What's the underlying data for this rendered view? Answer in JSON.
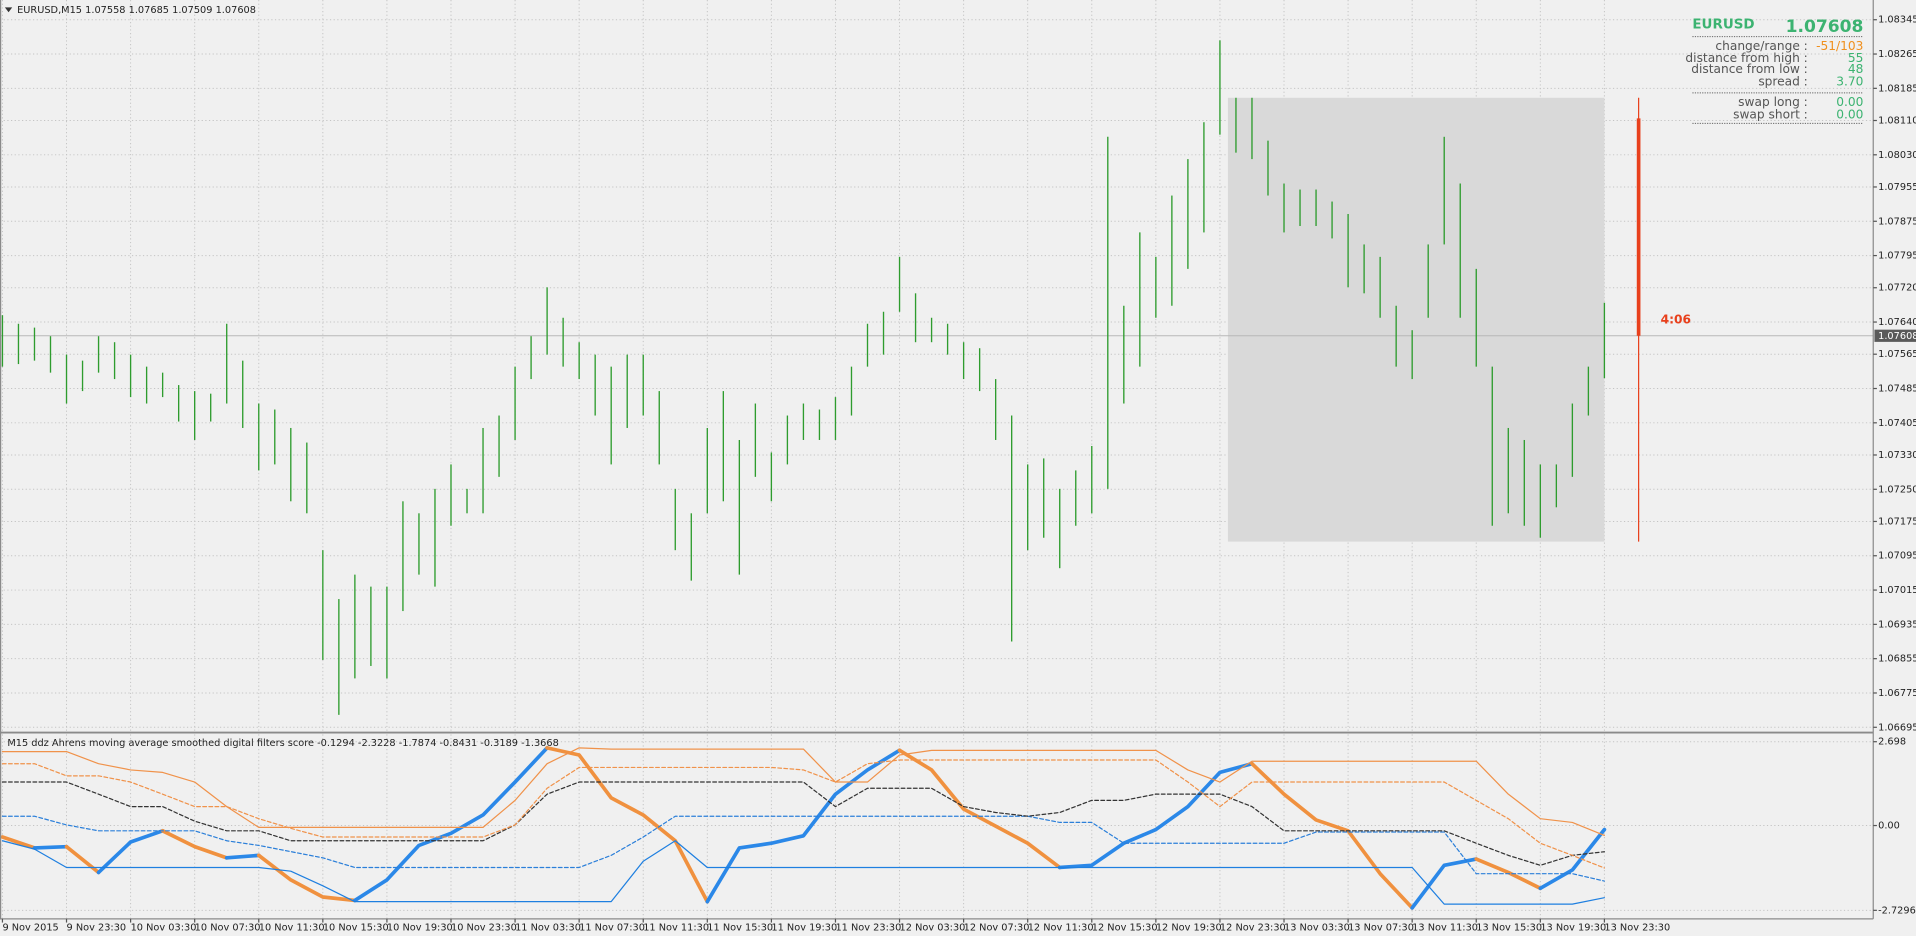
{
  "header": {
    "title": "EURUSD,M15  1.07558 1.07685 1.07509 1.07608"
  },
  "info_panel": {
    "symbol": "EURUSD",
    "price": "1.07608",
    "separator": ":",
    "label_color": "#555555",
    "symbol_color": "#3cb371",
    "rows": [
      {
        "label": "change/range",
        "value": "-51/103",
        "color": "#f0901e"
      },
      {
        "label": "distance from high",
        "value": "55",
        "color": "#3cb371"
      },
      {
        "label": "distance from low",
        "value": "48",
        "color": "#3cb371"
      },
      {
        "label": "spread",
        "value": "3.70",
        "color": "#3cb371"
      },
      {
        "label": "swap long",
        "value": "0.00",
        "color": "#3cb371"
      },
      {
        "label": "swap short",
        "value": "0.00",
        "color": "#3cb371"
      }
    ]
  },
  "time_axis": {
    "labels": [
      "9 Nov 2015",
      "9 Nov 23:30",
      "10 Nov 03:30",
      "10 Nov 07:30",
      "10 Nov 11:30",
      "10 Nov 15:30",
      "10 Nov 19:30",
      "10 Nov 23:30",
      "11 Nov 03:30",
      "11 Nov 07:30",
      "11 Nov 11:30",
      "11 Nov 15:30",
      "11 Nov 19:30",
      "11 Nov 23:30",
      "12 Nov 03:30",
      "12 Nov 07:30",
      "12 Nov 11:30",
      "12 Nov 15:30",
      "12 Nov 19:30",
      "12 Nov 23:30",
      "13 Nov 03:30",
      "13 Nov 07:30",
      "13 Nov 11:30",
      "13 Nov 15:30",
      "13 Nov 19:30",
      "13 Nov 23:30"
    ]
  },
  "chart_data": [
    {
      "type": "hl_bars",
      "color": "#2e9c2e",
      "grid": true,
      "ylim": [
        1.06687,
        1.08391
      ],
      "yticks": [
        1.08345,
        1.08265,
        1.08185,
        {
          "value": 1.0811,
          "label": "1.08110"
        },
        {
          "value": 1.0803,
          "label": "1.08030"
        },
        1.07955,
        1.07875,
        1.07795,
        {
          "value": 1.0772,
          "label": "1.07720"
        },
        {
          "value": 1.0764,
          "label": "1.07640"
        },
        1.07565,
        1.07485,
        1.07405,
        {
          "value": 1.0733,
          "label": "1.07330"
        },
        {
          "value": 1.0725,
          "label": "1.07250"
        },
        1.07175,
        1.07095,
        1.07015,
        1.06935,
        1.06855,
        1.06775,
        1.06695
      ],
      "high": [
        1.07656,
        1.07636,
        1.07627,
        1.07607,
        1.07564,
        1.0755,
        1.07607,
        1.07593,
        1.07564,
        1.07536,
        1.07522,
        1.07493,
        1.07479,
        1.07473,
        1.07636,
        1.0755,
        1.0745,
        1.07436,
        1.07393,
        1.07359,
        1.07108,
        1.06994,
        1.07051,
        1.07023,
        1.07023,
        1.07222,
        1.07194,
        1.07251,
        1.07308,
        1.07251,
        1.07393,
        1.07422,
        1.07536,
        1.07607,
        1.07721,
        1.0765,
        1.07593,
        1.07564,
        1.07536,
        1.07564,
        1.07564,
        1.07479,
        1.07251,
        1.07194,
        1.07393,
        1.07479,
        1.07365,
        1.0745,
        1.07336,
        1.07422,
        1.0745,
        1.07436,
        1.07465,
        1.07536,
        1.07636,
        1.07664,
        1.07792,
        1.07707,
        1.0765,
        1.07636,
        1.07593,
        1.07579,
        1.07507,
        1.07422,
        1.07308,
        1.07322,
        1.07251,
        1.07294,
        1.07351,
        1.08072,
        1.07678,
        1.07849,
        1.07792,
        1.07935,
        1.0802,
        1.08106,
        1.08297,
        1.08163,
        1.08163,
        1.08063,
        1.07963,
        1.07949,
        1.07949,
        1.07921,
        1.07892,
        1.07821,
        1.07792,
        1.07678,
        1.07621,
        1.07821,
        1.08072,
        1.07963,
        1.07764,
        1.07536,
        1.07393,
        1.07365,
        1.07308,
        1.07308,
        1.0745,
        1.07536,
        1.07685
      ],
      "low": [
        1.07536,
        1.07542,
        1.0755,
        1.07522,
        1.0745,
        1.07479,
        1.07522,
        1.07507,
        1.07465,
        1.0745,
        1.07465,
        1.07408,
        1.07365,
        1.07408,
        1.0745,
        1.07393,
        1.07294,
        1.07308,
        1.07222,
        1.07194,
        1.06852,
        1.06724,
        1.06809,
        1.06838,
        1.06809,
        1.06966,
        1.07051,
        1.07023,
        1.07165,
        1.07194,
        1.07194,
        1.07279,
        1.07365,
        1.07507,
        1.07564,
        1.07536,
        1.07507,
        1.07422,
        1.07308,
        1.07393,
        1.07422,
        1.07308,
        1.07108,
        1.07037,
        1.07194,
        1.07222,
        1.07051,
        1.07279,
        1.07222,
        1.07308,
        1.07365,
        1.07365,
        1.07365,
        1.07422,
        1.07536,
        1.07564,
        1.07664,
        1.07593,
        1.07593,
        1.07564,
        1.07507,
        1.07479,
        1.07365,
        1.06895,
        1.07108,
        1.07137,
        1.07066,
        1.07165,
        1.07194,
        1.07251,
        1.0745,
        1.07536,
        1.0765,
        1.07678,
        1.07764,
        1.07849,
        1.08077,
        1.08035,
        1.0802,
        1.07935,
        1.07849,
        1.07864,
        1.07864,
        1.07835,
        1.07721,
        1.07707,
        1.0765,
        1.07536,
        1.07507,
        1.0765,
        1.07821,
        1.0765,
        1.07536,
        1.07165,
        1.07194,
        1.07165,
        1.07137,
        1.07208,
        1.07279,
        1.07422,
        1.07509
      ],
      "last_price": 1.07608,
      "range_box": {
        "high": 1.08163,
        "low": 1.07128,
        "color": "#d9d9d9"
      },
      "timer": {
        "label": "4:06",
        "high": 1.08163,
        "low": 1.07128,
        "from": 1.08115,
        "to": 1.07608,
        "color": "#e8401c"
      }
    },
    {
      "type": "line",
      "title": "M15 ddz Ahrens moving average smoothed digital filters score -0.1294 -2.3228 -1.7874 -0.8431 -0.3189 -1.3668",
      "grid": true,
      "ylim": [
        -3.005,
        2.934
      ],
      "yticks": [
        2.698,
        {
          "value": 0,
          "label": "0.00"
        },
        -2.7296
      ],
      "series": [
        {
          "color": "#2b88e8",
          "falling_color": "#f0913f",
          "width": 3,
          "values": [
            -0.37,
            -0.72,
            -0.68,
            -1.51,
            -0.53,
            -0.17,
            -0.68,
            -1.04,
            -0.96,
            -1.75,
            -2.3,
            -2.41,
            -1.75,
            -0.64,
            -0.25,
            0.34,
            1.4,
            2.5,
            2.27,
            0.89,
            0.34,
            -0.49,
            -2.45,
            -0.72,
            -0.57,
            -0.33,
            1.01,
            1.79,
            2.42,
            1.79,
            0.53,
            -0.02,
            -0.57,
            -1.35,
            -1.28,
            -0.57,
            -0.13,
            0.61,
            1.71,
            1.99,
            1.01,
            0.18,
            -0.17,
            -1.55,
            -2.65,
            -1.28,
            -1.08,
            -1.51,
            -2.02,
            -1.43,
            -0.1294
          ]
        },
        {
          "color": "#1e7fe0",
          "width": 1,
          "dash": false,
          "values": [
            -0.49,
            -0.76,
            -1.35,
            -1.35,
            -1.35,
            -1.35,
            -1.35,
            -1.35,
            -1.35,
            -1.47,
            -1.94,
            -2.45,
            -2.45,
            -2.45,
            -2.45,
            -2.45,
            -2.45,
            -2.45,
            -2.45,
            -2.45,
            -1.15,
            -0.49,
            -1.35,
            -1.35,
            -1.35,
            -1.35,
            -1.35,
            -1.35,
            -1.35,
            -1.35,
            -1.35,
            -1.35,
            -1.35,
            -1.35,
            -1.35,
            -1.35,
            -1.35,
            -1.35,
            -1.35,
            -1.35,
            -1.35,
            -1.35,
            -1.35,
            -1.35,
            -1.35,
            -2.53,
            -2.53,
            -2.53,
            -2.53,
            -2.53,
            -2.3228
          ]
        },
        {
          "color": "#2b7fd9",
          "width": 1,
          "dash": true,
          "values": [
            0.3,
            0.3,
            0.02,
            -0.17,
            -0.17,
            -0.17,
            -0.17,
            -0.49,
            -0.64,
            -0.84,
            -1.04,
            -1.35,
            -1.35,
            -1.35,
            -1.35,
            -1.35,
            -1.35,
            -1.35,
            -1.35,
            -0.96,
            -0.37,
            0.3,
            0.3,
            0.3,
            0.3,
            0.3,
            0.3,
            0.3,
            0.3,
            0.3,
            0.3,
            0.3,
            0.3,
            0.1,
            0.1,
            -0.57,
            -0.57,
            -0.57,
            -0.57,
            -0.57,
            -0.57,
            -0.21,
            -0.21,
            -0.21,
            -0.21,
            -0.21,
            -1.55,
            -1.55,
            -1.55,
            -1.55,
            -1.7874
          ]
        },
        {
          "color": "#333333",
          "width": 1,
          "dash": true,
          "values": [
            1.4,
            1.4,
            1.4,
            1.01,
            0.61,
            0.61,
            0.14,
            -0.17,
            -0.17,
            -0.49,
            -0.49,
            -0.49,
            -0.49,
            -0.49,
            -0.49,
            -0.49,
            0.02,
            1.01,
            1.4,
            1.4,
            1.4,
            1.4,
            1.4,
            1.4,
            1.4,
            1.4,
            0.61,
            1.2,
            1.2,
            1.2,
            0.61,
            0.42,
            0.3,
            0.42,
            0.81,
            0.81,
            1.01,
            1.01,
            1.01,
            0.61,
            -0.17,
            -0.17,
            -0.17,
            -0.17,
            -0.17,
            -0.17,
            -0.57,
            -0.96,
            -1.28,
            -0.96,
            -0.8431
          ]
        },
        {
          "color": "#f0924a",
          "width": 1,
          "dash": false,
          "values": [
            2.38,
            2.38,
            2.38,
            1.99,
            1.79,
            1.71,
            1.4,
            0.61,
            -0.06,
            -0.06,
            -0.06,
            -0.06,
            -0.06,
            -0.06,
            -0.06,
            -0.06,
            0.81,
            1.99,
            2.5,
            2.46,
            2.46,
            2.46,
            2.46,
            2.46,
            2.46,
            2.46,
            1.4,
            1.4,
            2.27,
            2.42,
            2.42,
            2.42,
            2.42,
            2.42,
            2.42,
            2.42,
            2.42,
            1.79,
            1.4,
            2.07,
            2.07,
            2.07,
            2.07,
            2.07,
            2.07,
            2.07,
            2.07,
            1.01,
            0.22,
            0.1,
            -0.3189
          ]
        },
        {
          "color": "#f0924a",
          "width": 1,
          "dash": true,
          "values": [
            1.99,
            1.99,
            1.6,
            1.6,
            1.4,
            1.01,
            0.61,
            0.61,
            0.22,
            -0.09,
            -0.37,
            -0.37,
            -0.37,
            -0.37,
            -0.37,
            -0.37,
            0.02,
            1.2,
            1.87,
            1.87,
            1.87,
            1.87,
            1.87,
            1.87,
            1.87,
            1.79,
            1.4,
            1.99,
            2.11,
            2.11,
            2.11,
            2.11,
            2.11,
            2.11,
            2.11,
            2.11,
            2.11,
            1.4,
            0.61,
            1.4,
            1.4,
            1.4,
            1.4,
            1.4,
            1.4,
            1.4,
            0.81,
            0.22,
            -0.57,
            -0.96,
            -1.3668
          ]
        }
      ]
    }
  ]
}
